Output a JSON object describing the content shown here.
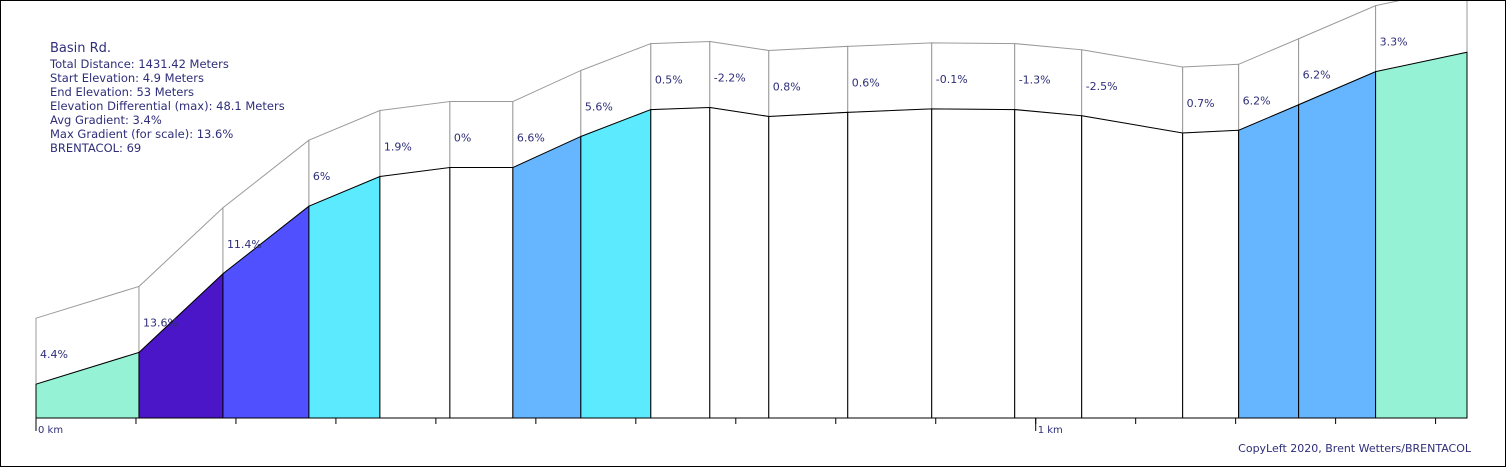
{
  "chart_data": {
    "type": "area",
    "title": "Basin Rd.",
    "stats": [
      "Total Distance: 1431.42 Meters",
      "Start Elevation: 4.9 Meters",
      "End Elevation: 53 Meters",
      "Elevation Differential (max): 48.1 Meters",
      "Avg Gradient: 3.4%",
      "Max Gradient (for scale): 13.6%",
      "BRENTACOL: 69"
    ],
    "x_unit": "m",
    "y_unit": "m",
    "x_tick_labels": [
      {
        "x_m": 0,
        "label": "0 km"
      },
      {
        "x_m": 1000,
        "label": "1 km"
      }
    ],
    "xlim": [
      0,
      1431.42
    ],
    "ylim": [
      0,
      53
    ],
    "segments": [
      {
        "x0": 0,
        "x1": 103,
        "y0": 4.9,
        "y1": 9.5,
        "grade": "4.4%",
        "color": "#96f2d5"
      },
      {
        "x0": 103,
        "x1": 187,
        "y0": 9.5,
        "y1": 20.9,
        "grade": "13.6%",
        "color": "#4a16c8"
      },
      {
        "x0": 187,
        "x1": 273,
        "y0": 20.9,
        "y1": 30.7,
        "grade": "11.4%",
        "color": "#5050ff"
      },
      {
        "x0": 273,
        "x1": 344,
        "y0": 30.7,
        "y1": 35.0,
        "grade": "6%",
        "color": "#5ceafe"
      },
      {
        "x0": 344,
        "x1": 414,
        "y0": 35.0,
        "y1": 36.3,
        "grade": "1.9%",
        "color": "#ffffff"
      },
      {
        "x0": 414,
        "x1": 477,
        "y0": 36.3,
        "y1": 36.3,
        "grade": "0%",
        "color": "#ffffff"
      },
      {
        "x0": 477,
        "x1": 545,
        "y0": 36.3,
        "y1": 40.8,
        "grade": "6.6%",
        "color": "#65b5ff"
      },
      {
        "x0": 545,
        "x1": 615,
        "y0": 40.8,
        "y1": 44.7,
        "grade": "5.6%",
        "color": "#5ceafe"
      },
      {
        "x0": 615,
        "x1": 674,
        "y0": 44.7,
        "y1": 45.0,
        "grade": "0.5%",
        "color": "#ffffff"
      },
      {
        "x0": 674,
        "x1": 733,
        "y0": 45.0,
        "y1": 43.7,
        "grade": "-2.2%",
        "color": "#ffffff"
      },
      {
        "x0": 733,
        "x1": 812,
        "y0": 43.7,
        "y1": 44.3,
        "grade": "0.8%",
        "color": "#ffffff"
      },
      {
        "x0": 812,
        "x1": 896,
        "y0": 44.3,
        "y1": 44.8,
        "grade": "0.6%",
        "color": "#ffffff"
      },
      {
        "x0": 896,
        "x1": 979,
        "y0": 44.8,
        "y1": 44.7,
        "grade": "-0.1%",
        "color": "#ffffff"
      },
      {
        "x0": 979,
        "x1": 1046,
        "y0": 44.7,
        "y1": 43.8,
        "grade": "-1.3%",
        "color": "#ffffff"
      },
      {
        "x0": 1046,
        "x1": 1147,
        "y0": 43.8,
        "y1": 41.3,
        "grade": "-2.5%",
        "color": "#ffffff"
      },
      {
        "x0": 1147,
        "x1": 1203,
        "y0": 41.3,
        "y1": 41.7,
        "grade": "0.7%",
        "color": "#ffffff"
      },
      {
        "x0": 1203,
        "x1": 1263,
        "y0": 41.7,
        "y1": 45.4,
        "grade": "6.2%",
        "color": "#65b5ff"
      },
      {
        "x0": 1263,
        "x1": 1340,
        "y0": 45.4,
        "y1": 50.2,
        "grade": "6.2%",
        "color": "#65b5ff"
      },
      {
        "x0": 1340,
        "x1": 1431.42,
        "y0": 50.2,
        "y1": 53.0,
        "grade": "3.3%",
        "color": "#96f2d5"
      }
    ]
  },
  "footer": {
    "copyleft": "CopyLeft 2020, Brent Wetters/BRENTACOL"
  }
}
